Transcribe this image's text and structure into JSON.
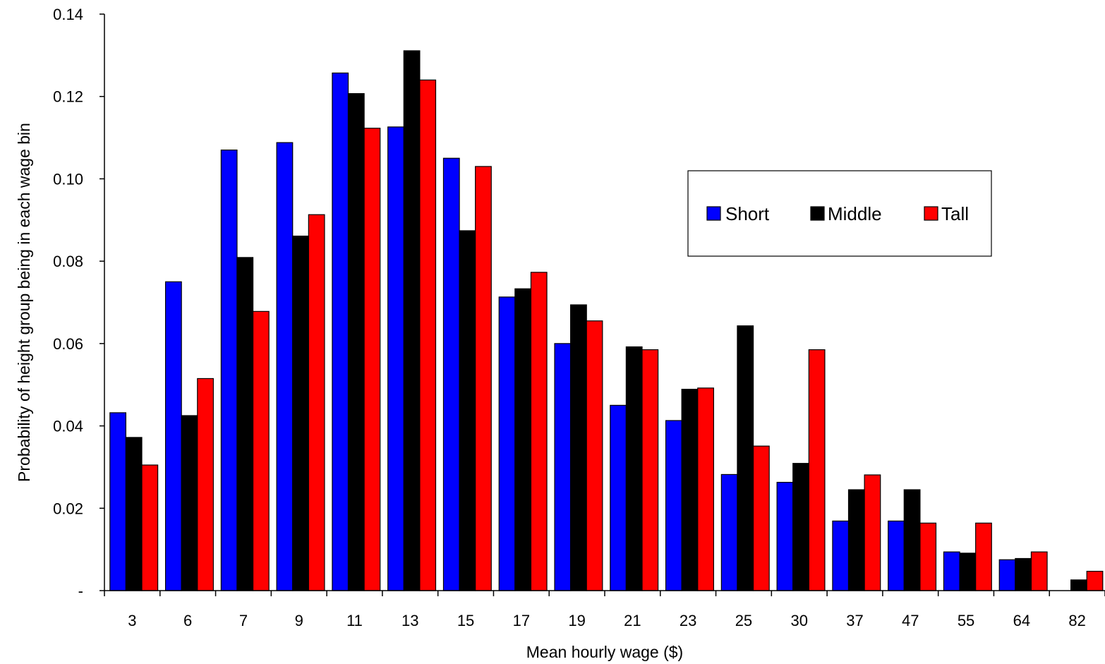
{
  "chart_data": {
    "type": "bar",
    "title": "",
    "xlabel": "Mean hourly wage ($)",
    "ylabel": "Probability of height group being in each wage bin",
    "categories": [
      "3",
      "6",
      "7",
      "9",
      "11",
      "13",
      "15",
      "17",
      "19",
      "21",
      "23",
      "25",
      "30",
      "37",
      "47",
      "55",
      "64",
      "82"
    ],
    "yticks": [
      "-",
      "0.02",
      "0.04",
      "0.06",
      "0.08",
      "0.10",
      "0.12",
      "0.14"
    ],
    "ylim": [
      0,
      0.14
    ],
    "grid": false,
    "legend_position": "upper-right",
    "series": [
      {
        "name": "Short",
        "color": "#0000ff",
        "values": [
          0.0432,
          0.075,
          0.107,
          0.1088,
          0.1257,
          0.1126,
          0.105,
          0.0713,
          0.06,
          0.045,
          0.0413,
          0.0282,
          0.0263,
          0.0169,
          0.0169,
          0.0094,
          0.0075,
          0.0
        ]
      },
      {
        "name": "Middle",
        "color": "#000000",
        "values": [
          0.0372,
          0.0425,
          0.0809,
          0.0861,
          0.1207,
          0.1311,
          0.0874,
          0.0733,
          0.0694,
          0.0592,
          0.0489,
          0.0643,
          0.0309,
          0.0245,
          0.0245,
          0.0091,
          0.0078,
          0.0026
        ]
      },
      {
        "name": "Tall",
        "color": "#ff0000",
        "values": [
          0.0305,
          0.0515,
          0.0678,
          0.0913,
          0.1123,
          0.124,
          0.103,
          0.0773,
          0.0655,
          0.0585,
          0.0492,
          0.0351,
          0.0585,
          0.0281,
          0.0164,
          0.0164,
          0.0094,
          0.0047
        ]
      }
    ]
  }
}
